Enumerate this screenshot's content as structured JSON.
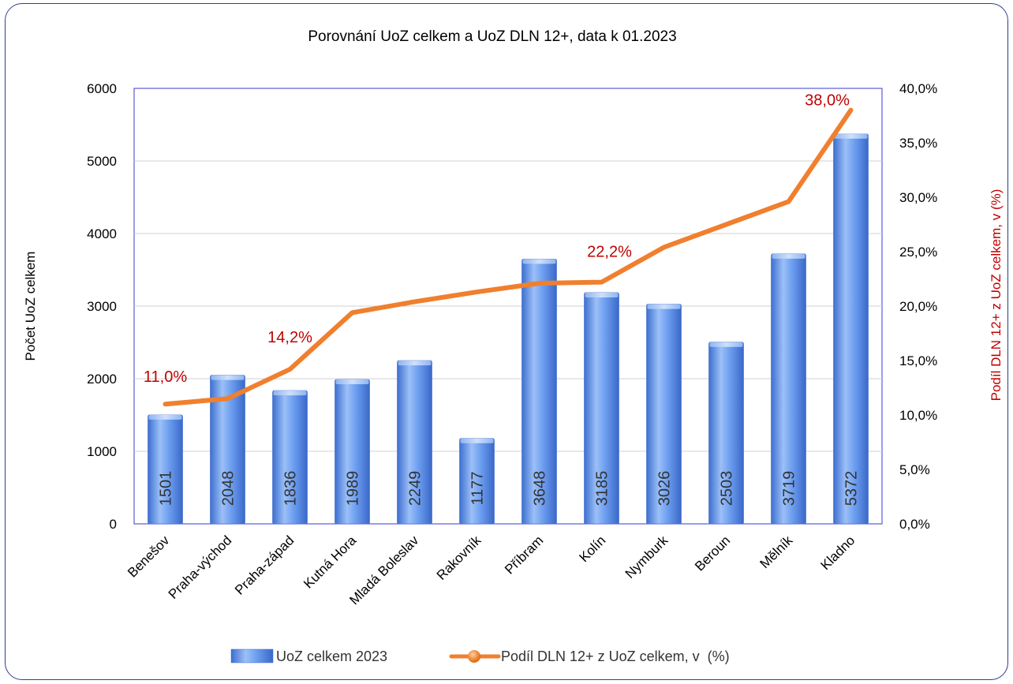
{
  "chart_data": {
    "type": "bar",
    "title": "Porovnání UoZ celkem a UoZ DLN 12+, data k 01.2023",
    "xlabel": "",
    "ylabel": "Počet UoZ celkem",
    "y2label": "Podíl DLN 12+ z UoZ celkem, v (%)",
    "categories": [
      "Benešov",
      "Praha-východ",
      "Praha-západ",
      "Kutná Hora",
      "Mladá Boleslav",
      "Rakovník",
      "Příbram",
      "Kolín",
      "Nymburk",
      "Beroun",
      "Mělník",
      "Kladno"
    ],
    "series": [
      {
        "name": "UoZ celkem 2023",
        "type": "bar",
        "axis": "left",
        "values": [
          1501,
          2048,
          1836,
          1989,
          2249,
          1177,
          3648,
          3185,
          3026,
          2503,
          3719,
          5372
        ],
        "color": "#5b8fe6"
      },
      {
        "name": "Podíl DLN 12+ z UoZ celkem, v  (%)",
        "type": "line",
        "axis": "right",
        "values": [
          11.0,
          11.5,
          14.2,
          19.4,
          20.4,
          21.3,
          22.1,
          22.2,
          25.4,
          27.5,
          29.6,
          38.0
        ],
        "color": "#f07f2e"
      }
    ],
    "ylim": [
      0,
      6000
    ],
    "y_ticks": [
      "0",
      "1000",
      "2000",
      "3000",
      "4000",
      "5000",
      "6000"
    ],
    "y2lim": [
      0,
      40
    ],
    "y2_ticks": [
      "0,0%",
      "5,0%",
      "10,0%",
      "15,0%",
      "20,0%",
      "25,0%",
      "30,0%",
      "35,0%",
      "40,0%"
    ],
    "annotations": [
      {
        "index": 0,
        "text": "11,0%"
      },
      {
        "index": 2,
        "text": "14,2%"
      },
      {
        "index": 7,
        "text": "22,2%"
      },
      {
        "index": 11,
        "text": "38,0%"
      }
    ],
    "annotation_color": "#c00000",
    "y2_title_color": "#c00000",
    "grid": true,
    "legend": "bottom"
  }
}
